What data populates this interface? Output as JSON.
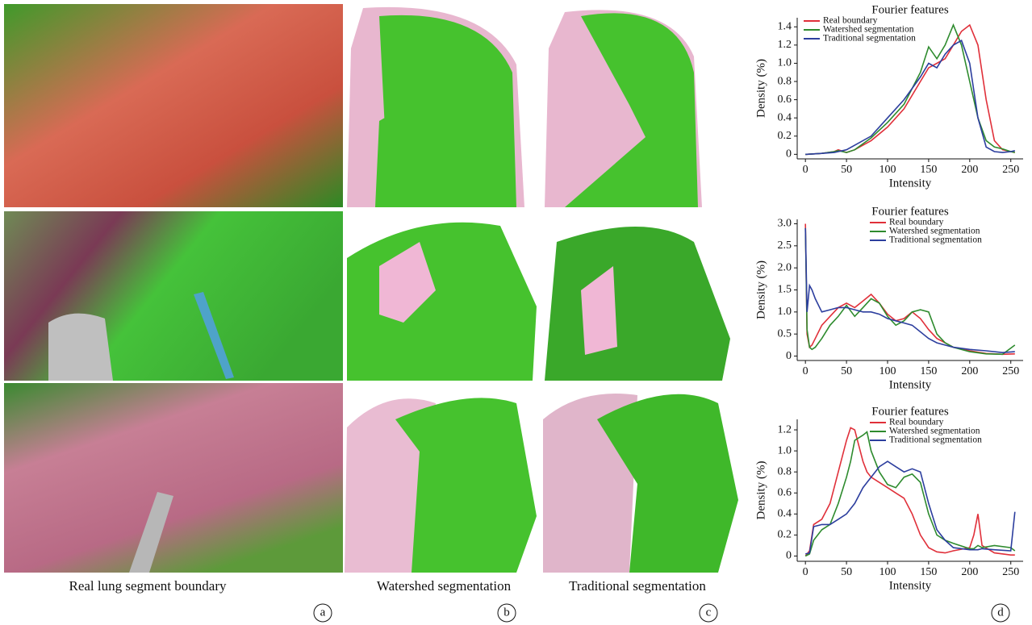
{
  "chart_data": [
    {
      "type": "line",
      "title": "Fourier features",
      "xlabel": "Intensity",
      "ylabel": "Density (%)",
      "legend": "upper left",
      "xlim": [
        -10,
        265
      ],
      "xticks": [
        0,
        50,
        100,
        150,
        200,
        250
      ],
      "ylim": [
        -0.05,
        1.5
      ],
      "yticks": [
        0,
        0.2,
        0.4,
        0.6,
        0.8,
        {
          "value": 1,
          "label": "1.0"
        },
        1.2,
        1.4
      ],
      "x": [
        0,
        20,
        35,
        40,
        50,
        60,
        80,
        100,
        120,
        140,
        150,
        160,
        170,
        180,
        190,
        200,
        210,
        220,
        230,
        240,
        250,
        255
      ],
      "series": [
        {
          "name": "Real boundary",
          "color": "#e0303a",
          "values": [
            0,
            0.01,
            0.03,
            0.05,
            0.02,
            0.05,
            0.15,
            0.3,
            0.5,
            0.8,
            0.95,
            1.0,
            1.05,
            1.2,
            1.35,
            1.42,
            1.2,
            0.6,
            0.15,
            0.05,
            0.03,
            0.02
          ]
        },
        {
          "name": "Watershed segmentation",
          "color": "#2e8b2e",
          "values": [
            0,
            0.01,
            0.03,
            0.04,
            0.02,
            0.05,
            0.18,
            0.35,
            0.55,
            0.9,
            1.18,
            1.05,
            1.2,
            1.42,
            1.2,
            0.8,
            0.4,
            0.15,
            0.08,
            0.06,
            0.03,
            0.02
          ]
        },
        {
          "name": "Traditional segmentation",
          "color": "#2c3e9e",
          "values": [
            0,
            0.01,
            0.02,
            0.03,
            0.05,
            0.1,
            0.2,
            0.4,
            0.6,
            0.85,
            1.0,
            0.95,
            1.1,
            1.2,
            1.25,
            1.0,
            0.4,
            0.08,
            0.03,
            0.02,
            0.03,
            0.04
          ]
        }
      ]
    },
    {
      "type": "line",
      "title": "Fourier features",
      "xlabel": "Intensity",
      "ylabel": "Density (%)",
      "legend": "upper right",
      "xlim": [
        -10,
        265
      ],
      "xticks": [
        0,
        50,
        100,
        150,
        200,
        250
      ],
      "ylim": [
        -0.1,
        3.1
      ],
      "yticks": [
        0,
        0.5,
        {
          "value": 1,
          "label": "1.0"
        },
        1.5,
        {
          "value": 2,
          "label": "2.0"
        },
        2.5,
        {
          "value": 3,
          "label": "3.0"
        }
      ],
      "x": [
        0,
        2,
        5,
        8,
        12,
        20,
        30,
        40,
        50,
        60,
        70,
        80,
        90,
        100,
        110,
        120,
        130,
        140,
        150,
        160,
        170,
        180,
        200,
        220,
        240,
        255
      ],
      "series": [
        {
          "name": "Real boundary",
          "color": "#e0303a",
          "values": [
            3.0,
            0.5,
            0.2,
            0.25,
            0.4,
            0.7,
            0.9,
            1.1,
            1.2,
            1.1,
            1.25,
            1.4,
            1.2,
            0.95,
            0.8,
            0.85,
            1.0,
            0.85,
            0.6,
            0.4,
            0.3,
            0.2,
            0.12,
            0.06,
            0.04,
            0.05
          ]
        },
        {
          "name": "Watershed segmentation",
          "color": "#2e8b2e",
          "values": [
            2.9,
            0.6,
            0.2,
            0.15,
            0.2,
            0.4,
            0.7,
            0.9,
            1.15,
            0.9,
            1.1,
            1.3,
            1.2,
            0.9,
            0.7,
            0.8,
            1.0,
            1.05,
            1.0,
            0.5,
            0.3,
            0.2,
            0.1,
            0.05,
            0.04,
            0.25
          ]
        },
        {
          "name": "Traditional segmentation",
          "color": "#2c3e9e",
          "values": [
            2.9,
            1.0,
            1.6,
            1.5,
            1.3,
            1.0,
            1.05,
            1.1,
            1.1,
            1.05,
            1.0,
            1.0,
            0.95,
            0.85,
            0.8,
            0.75,
            0.7,
            0.55,
            0.4,
            0.3,
            0.25,
            0.2,
            0.15,
            0.12,
            0.08,
            0.1
          ]
        }
      ]
    },
    {
      "type": "line",
      "title": "Fourier features",
      "xlabel": "Intensity",
      "ylabel": "Density (%)",
      "legend": "upper right",
      "xlim": [
        -10,
        265
      ],
      "xticks": [
        0,
        50,
        100,
        150,
        200,
        250
      ],
      "ylim": [
        -0.05,
        1.3
      ],
      "yticks": [
        0,
        0.2,
        0.4,
        0.6,
        0.8,
        {
          "value": 1,
          "label": "1.0"
        },
        1.2
      ],
      "x": [
        0,
        5,
        10,
        20,
        30,
        40,
        50,
        55,
        60,
        70,
        75,
        80,
        90,
        100,
        110,
        120,
        130,
        140,
        150,
        160,
        170,
        180,
        200,
        205,
        210,
        215,
        230,
        250,
        255
      ],
      "series": [
        {
          "name": "Real boundary",
          "color": "#e0303a",
          "values": [
            0,
            0.05,
            0.3,
            0.35,
            0.5,
            0.8,
            1.1,
            1.22,
            1.2,
            0.9,
            0.8,
            0.75,
            0.7,
            0.65,
            0.6,
            0.55,
            0.4,
            0.2,
            0.08,
            0.04,
            0.03,
            0.05,
            0.08,
            0.2,
            0.4,
            0.1,
            0.03,
            0.01,
            0.01
          ]
        },
        {
          "name": "Watershed segmentation",
          "color": "#2e8b2e",
          "values": [
            0,
            0.02,
            0.15,
            0.25,
            0.3,
            0.5,
            0.75,
            0.9,
            1.1,
            1.15,
            1.18,
            1.0,
            0.8,
            0.68,
            0.65,
            0.75,
            0.78,
            0.7,
            0.4,
            0.2,
            0.15,
            0.12,
            0.07,
            0.07,
            0.1,
            0.08,
            0.1,
            0.08,
            0.05
          ]
        },
        {
          "name": "Traditional segmentation",
          "color": "#2c3e9e",
          "values": [
            0.02,
            0.03,
            0.28,
            0.3,
            0.3,
            0.35,
            0.4,
            0.45,
            0.5,
            0.65,
            0.7,
            0.75,
            0.85,
            0.9,
            0.85,
            0.8,
            0.83,
            0.8,
            0.5,
            0.25,
            0.15,
            0.08,
            0.06,
            0.06,
            0.06,
            0.07,
            0.06,
            0.05,
            0.42
          ]
        }
      ]
    }
  ],
  "panels": [
    {
      "caption": "Real lung segment boundary",
      "label": "a"
    },
    {
      "caption": "Watershed segmentation",
      "label": "b"
    },
    {
      "caption": "Traditional segmentation",
      "label": "c"
    },
    {
      "label": "d"
    }
  ]
}
